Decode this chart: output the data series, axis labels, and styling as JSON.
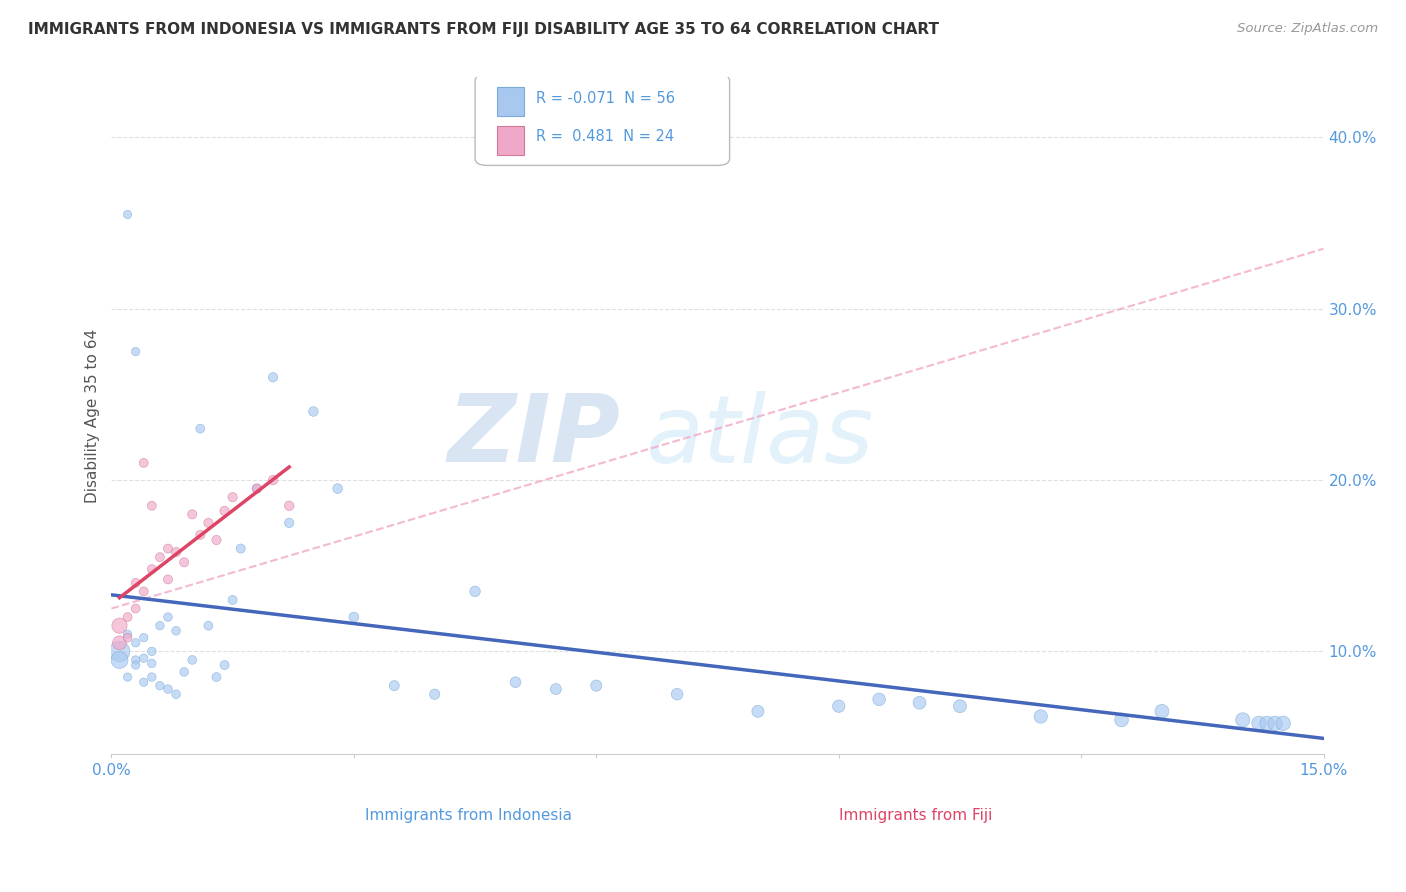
{
  "title": "IMMIGRANTS FROM INDONESIA VS IMMIGRANTS FROM FIJI DISABILITY AGE 35 TO 64 CORRELATION CHART",
  "source": "Source: ZipAtlas.com",
  "xlabel_bottom": "Immigrants from Indonesia",
  "xlabel_bottom2": "Immigrants from Fiji",
  "ylabel": "Disability Age 35 to 64",
  "xlim": [
    0.0,
    0.15
  ],
  "ylim": [
    0.04,
    0.435
  ],
  "y_ticks": [
    0.1,
    0.2,
    0.3,
    0.4
  ],
  "y_tick_labels": [
    "10.0%",
    "20.0%",
    "30.0%",
    "40.0%"
  ],
  "x_tick_labels": [
    "0.0%",
    "",
    "",
    "",
    "",
    "15.0%"
  ],
  "legend_text1": "R = -0.071  N = 56",
  "legend_text2": "R =  0.481  N = 24",
  "color_indonesia": "#a8c8f0",
  "color_fiji": "#f0a8c8",
  "color_trend_indonesia": "#4466bb",
  "color_trend_fiji": "#dd4466",
  "color_trend_dashed": "#f0a8c8",
  "watermark_zip": "ZIP",
  "watermark_atlas": "atlas",
  "background_color": "#ffffff",
  "grid_color": "#dddddd",
  "tick_color": "#5599dd"
}
